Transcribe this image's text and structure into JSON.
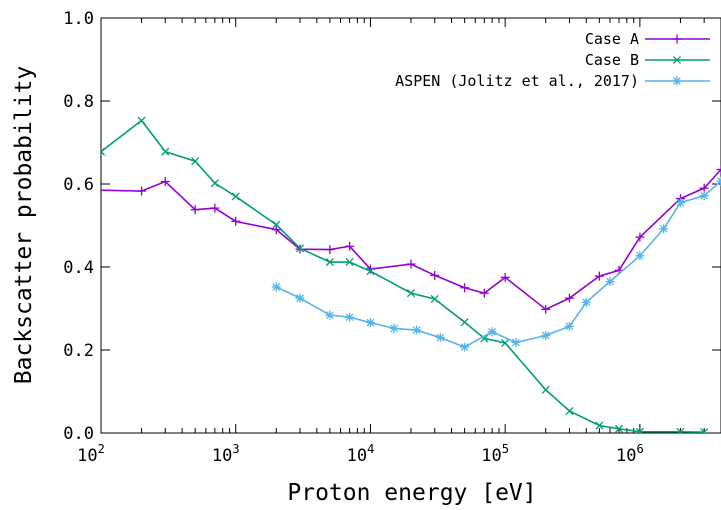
{
  "chart_data": {
    "type": "line",
    "title": "",
    "xlabel": "Proton energy [eV]",
    "ylabel": "Backscatter probability",
    "xscale": "log",
    "xlim": [
      100,
      4000000
    ],
    "ylim": [
      0.0,
      1.0
    ],
    "grid": false,
    "legend_position": "top-right",
    "x_ticks": [
      {
        "base": "10",
        "exp": "2",
        "value": 100
      },
      {
        "base": "10",
        "exp": "3",
        "value": 1000
      },
      {
        "base": "10",
        "exp": "4",
        "value": 10000
      },
      {
        "base": "10",
        "exp": "5",
        "value": 100000
      },
      {
        "base": "10",
        "exp": "6",
        "value": 1000000
      }
    ],
    "y_ticks": [
      {
        "label": "0.0",
        "value": 0.0
      },
      {
        "label": "0.2",
        "value": 0.2
      },
      {
        "label": "0.4",
        "value": 0.4
      },
      {
        "label": "0.6",
        "value": 0.6
      },
      {
        "label": "0.8",
        "value": 0.8
      },
      {
        "label": "1.0",
        "value": 1.0
      }
    ],
    "series": [
      {
        "name": "Case A",
        "color": "#9400d3",
        "marker": "plus",
        "x": [
          100,
          200,
          300,
          500,
          700,
          1000,
          2000,
          3000,
          5000,
          7000,
          10000,
          20000,
          30000,
          50000,
          70000,
          100000,
          200000,
          300000,
          500000,
          700000,
          1000000,
          2000000,
          3000000,
          4000000
        ],
        "y": [
          0.585,
          0.583,
          0.606,
          0.538,
          0.542,
          0.51,
          0.49,
          0.443,
          0.442,
          0.45,
          0.395,
          0.407,
          0.38,
          0.35,
          0.337,
          0.375,
          0.298,
          0.325,
          0.378,
          0.392,
          0.472,
          0.565,
          0.59,
          0.635
        ]
      },
      {
        "name": "Case B",
        "color": "#009e73",
        "marker": "cross",
        "x": [
          100,
          200,
          300,
          500,
          700,
          1000,
          2000,
          3000,
          5000,
          7000,
          10000,
          20000,
          30000,
          50000,
          70000,
          100000,
          200000,
          300000,
          500000,
          700000,
          1000000,
          2000000,
          3000000
        ],
        "y": [
          0.678,
          0.753,
          0.678,
          0.655,
          0.602,
          0.57,
          0.502,
          0.445,
          0.412,
          0.412,
          0.39,
          0.337,
          0.323,
          0.267,
          0.228,
          0.217,
          0.104,
          0.053,
          0.018,
          0.01,
          0.003,
          0.003,
          0.002
        ]
      },
      {
        "name": "ASPEN (Jolitz et al., 2017)",
        "color": "#56b4e9",
        "marker": "star",
        "x": [
          2000,
          3000,
          5000,
          7000,
          10000,
          15000,
          22000,
          33000,
          50000,
          80000,
          120000,
          200000,
          300000,
          400000,
          600000,
          1000000,
          1500000,
          2000000,
          3000000,
          4000000
        ],
        "y": [
          0.352,
          0.325,
          0.284,
          0.279,
          0.266,
          0.252,
          0.248,
          0.23,
          0.207,
          0.244,
          0.218,
          0.235,
          0.257,
          0.315,
          0.365,
          0.427,
          0.492,
          0.555,
          0.572,
          0.607
        ]
      }
    ]
  }
}
